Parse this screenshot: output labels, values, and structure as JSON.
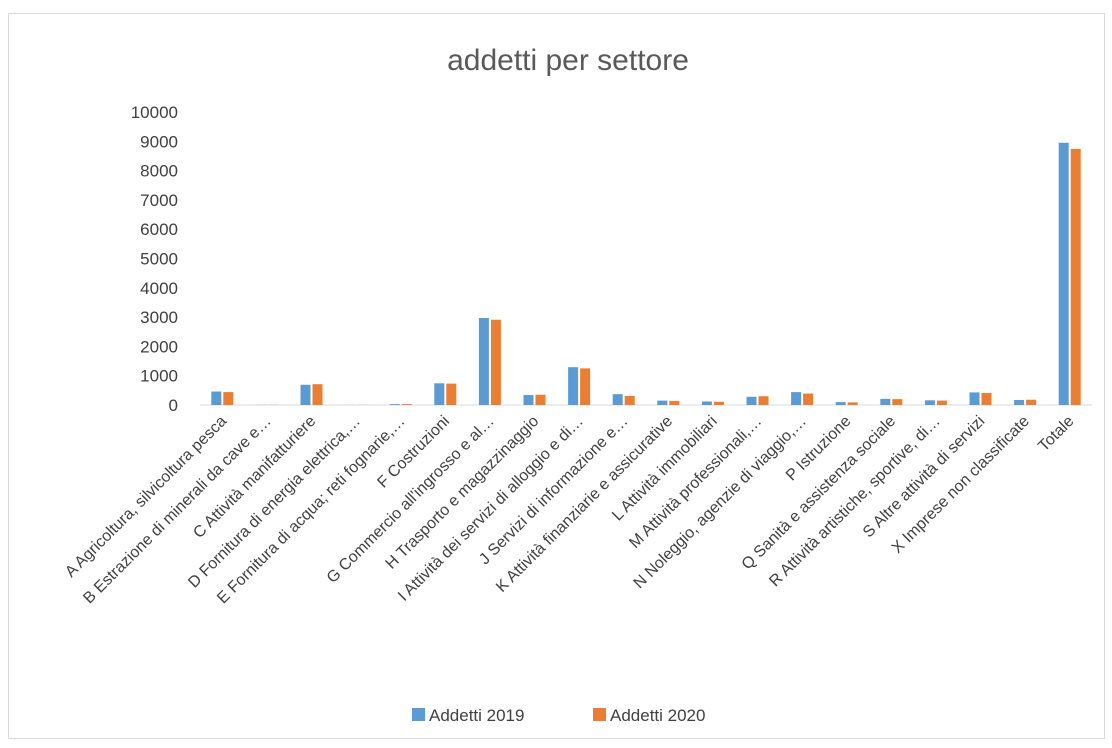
{
  "chart_data": {
    "type": "bar",
    "title": "addetti per settore",
    "xlabel": "",
    "ylabel": "",
    "ylim": [
      0,
      10000
    ],
    "yticks": [
      "0",
      "1000",
      "2000",
      "3000",
      "4000",
      "5000",
      "6000",
      "7000",
      "8000",
      "9000",
      "10000"
    ],
    "grid": false,
    "legend_position": "bottom",
    "categories": [
      "A Agricoltura, silvicoltura pesca",
      "B Estrazione di minerali da cave e…",
      "C Attività manifatturiere",
      "D Fornitura di energia elettrica,…",
      "E Fornitura di acqua; reti fognarie,…",
      "F Costruzioni",
      "G Commercio all'ingrosso e al…",
      "H Trasporto e magazzinaggio",
      "I Attività dei servizi di alloggio e di…",
      "J Servizi di informazione e…",
      "K Attività finanziarie e assicurative",
      "L Attività immobiliari",
      "M Attività professionali,…",
      "N Noleggio, agenzie di viaggio,…",
      "P Istruzione",
      "Q Sanità e assistenza sociale",
      "R Attività artistiche, sportive, di…",
      "S Altre attività di servizi",
      "X Imprese non classificate",
      "Totale"
    ],
    "series": [
      {
        "name": "Addetti 2019",
        "color": "#5b9bd5",
        "values": [
          460,
          5,
          690,
          3,
          30,
          740,
          2970,
          340,
          1290,
          370,
          150,
          120,
          280,
          440,
          100,
          210,
          160,
          430,
          170,
          8950
        ]
      },
      {
        "name": "Addetti 2020",
        "color": "#ed7d31",
        "values": [
          440,
          5,
          710,
          3,
          30,
          730,
          2910,
          350,
          1250,
          310,
          140,
          110,
          300,
          390,
          90,
          200,
          150,
          410,
          180,
          8740
        ]
      }
    ]
  }
}
